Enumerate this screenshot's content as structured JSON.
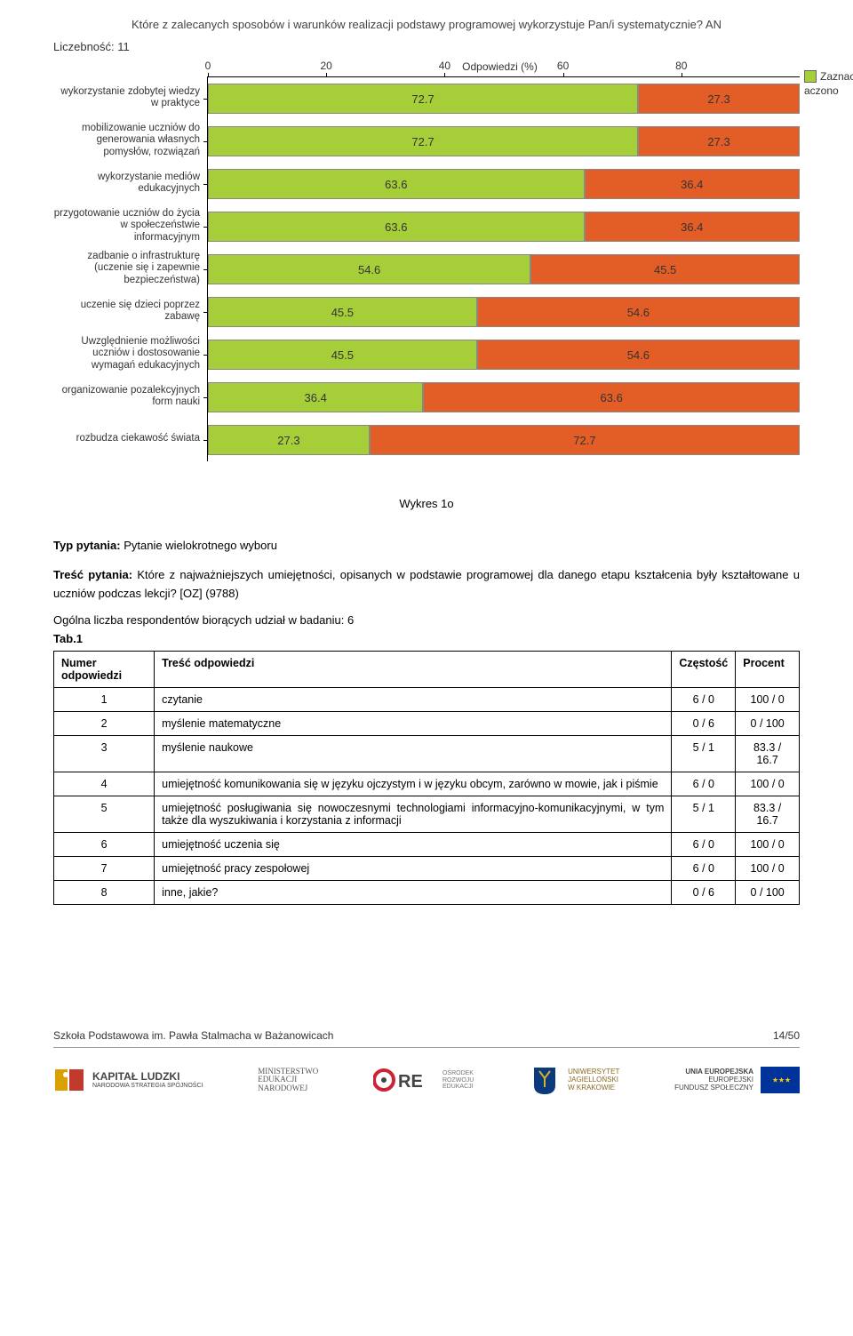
{
  "chart": {
    "type": "stacked-bar-horizontal",
    "title": "Które z zalecanych sposobów i warunków realizacji podstawy programowej wykorzystuje Pan/i systematycznie?  AN",
    "meta": "Liczebność: 11",
    "axis_unit": "Odpowiedzi (%)",
    "xlim": [
      0,
      80
    ],
    "ticks": [
      0,
      20,
      40,
      60,
      80
    ],
    "colors": {
      "yes": "#a6ce39",
      "no": "#e35e26",
      "border": "#888888"
    },
    "legend": {
      "yes": "Zaznaczono",
      "no": "aczono"
    },
    "rows": [
      {
        "label": "wykorzystanie zdobytej wiedzy w praktyce",
        "yes": 72.7,
        "no": 27.3
      },
      {
        "label": "mobilizowanie uczniów do generowania własnych pomysłów, rozwiązań",
        "yes": 72.7,
        "no": 27.3
      },
      {
        "label": "wykorzystanie mediów edukacyjnych",
        "yes": 63.6,
        "no": 36.4
      },
      {
        "label": "przygotowanie uczniów do życia w społeczeństwie informacyjnym",
        "yes": 63.6,
        "no": 36.4
      },
      {
        "label": "zadbanie o infrastrukturę (uczenie się i zapewnie bezpieczeństwa)",
        "yes": 54.6,
        "no": 45.5
      },
      {
        "label": "uczenie się dzieci poprzez zabawę",
        "yes": 45.5,
        "no": 54.6
      },
      {
        "label": "Uwzględnienie możliwości uczniów i dostosowanie wymagań edukacyjnych",
        "yes": 45.5,
        "no": 54.6
      },
      {
        "label": "organizowanie pozalekcyjnych form nauki",
        "yes": 36.4,
        "no": 63.6
      },
      {
        "label": "rozbudza ciekawość świata",
        "yes": 27.3,
        "no": 72.7
      }
    ]
  },
  "caption": "Wykres 1o",
  "question": {
    "type_label": "Typ pytania:",
    "type_value": "Pytanie wielokrotnego wyboru",
    "content_label": "Treść pytania:",
    "content_value": "Które z najważniejszych umiejętności, opisanych w podstawie programowej dla danego etapu kształcenia były kształtowane u uczniów podczas lekcji? [OZ] (9788)",
    "respondents": "Ogólna liczba respondentów biorących udział w badaniu: 6",
    "tab": "Tab.1"
  },
  "table": {
    "headers": [
      "Numer odpowiedzi",
      "Treść odpowiedzi",
      "Częstość",
      "Procent"
    ],
    "rows": [
      {
        "n": "1",
        "t": "czytanie",
        "c": "6 / 0",
        "p": "100 / 0"
      },
      {
        "n": "2",
        "t": "myślenie matematyczne",
        "c": "0 / 6",
        "p": "0 / 100"
      },
      {
        "n": "3",
        "t": "myślenie naukowe",
        "c": "5 / 1",
        "p": "83.3 / 16.7"
      },
      {
        "n": "4",
        "t": "umiejętność komunikowania się w języku ojczystym i w języku obcym, zarówno w mowie, jak i piśmie",
        "c": "6 / 0",
        "p": "100 / 0"
      },
      {
        "n": "5",
        "t": "umiejętność posługiwania się nowoczesnymi technologiami informacyjno-komunikacyjnymi, w tym także dla wyszukiwania i korzystania z informacji",
        "c": "5 / 1",
        "p": "83.3 / 16.7"
      },
      {
        "n": "6",
        "t": "umiejętność uczenia się",
        "c": "6 / 0",
        "p": "100 / 0"
      },
      {
        "n": "7",
        "t": "umiejętność pracy zespołowej",
        "c": "6 / 0",
        "p": "100 / 0"
      },
      {
        "n": "8",
        "t": "inne, jakie?",
        "c": "0 / 6",
        "p": "0 / 100"
      }
    ]
  },
  "footer": {
    "left": "Szkoła Podstawowa im. Pawła Stalmacha w Bażanowicach",
    "right": "14/50"
  },
  "logos": {
    "kl": {
      "top": "KAPITAŁ LUDZKI",
      "sub": "NARODOWA STRATEGIA SPÓJNOŚCI"
    },
    "men": {
      "l1": "MINISTERSTWO",
      "l2": "EDUKACJI",
      "l3": "NARODOWEJ"
    },
    "ore": {
      "brand": "ORE",
      "l1": "OŚRODEK",
      "l2": "ROZWOJU",
      "l3": "EDUKACJI"
    },
    "uj": {
      "l1": "UNIWERSYTET",
      "l2": "JAGIELLOŃSKI",
      "l3": "W KRAKOWIE"
    },
    "eu": {
      "l1": "UNIA EUROPEJSKA",
      "l2": "EUROPEJSKI",
      "l3": "FUNDUSZ SPOŁECZNY"
    }
  }
}
